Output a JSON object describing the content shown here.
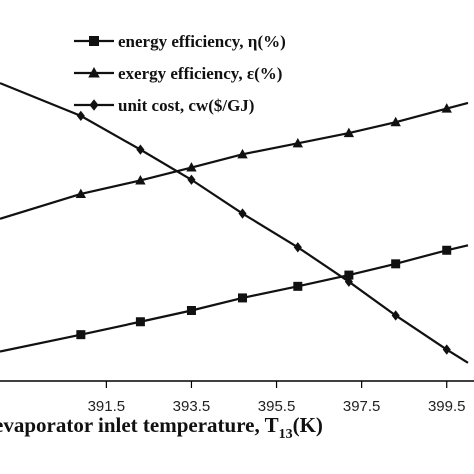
{
  "chart_data": {
    "type": "line",
    "xlabel": "evaporator inlet temperature, T",
    "xlabel_subscript": "13",
    "xlabel_unit": "(K)",
    "x_ticks": [
      "391.5",
      "393.5",
      "395.5",
      "397.5",
      "399.5"
    ],
    "xlim": [
      389.0,
      400.0
    ],
    "ylim": [
      0,
      100
    ],
    "grid": false,
    "legend_position": "top-right",
    "x": [
      389.0,
      390.9,
      392.3,
      393.5,
      394.7,
      396.0,
      397.2,
      398.3,
      399.5,
      400.0
    ],
    "series": [
      {
        "name": "energy efficiency, η(%)",
        "marker": "square",
        "values": [
          8.9,
          14.0,
          17.9,
          21.3,
          25.1,
          28.6,
          32.0,
          35.4,
          39.5,
          41.0
        ]
      },
      {
        "name": "exergy efficiency, ε(%)",
        "marker": "triangle",
        "values": [
          49.0,
          56.5,
          60.6,
          64.5,
          68.5,
          71.8,
          74.9,
          78.2,
          82.3,
          84.0
        ]
      },
      {
        "name": "unit cost, cw($/GJ)",
        "marker": "diamond",
        "values": [
          90.0,
          80.1,
          69.9,
          60.8,
          50.6,
          40.4,
          30.0,
          19.8,
          9.5,
          5.5
        ]
      }
    ]
  },
  "colors": {
    "line": "#111111",
    "axis": "#000000"
  }
}
